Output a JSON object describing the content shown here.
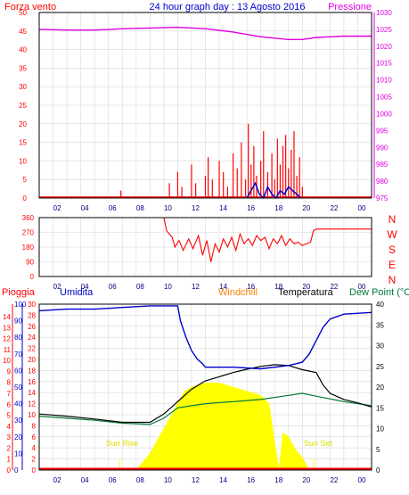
{
  "colors": {
    "red": "#ff0000",
    "magenta": "#e000e0",
    "blue": "#0000cc",
    "navy": "#000099",
    "orange": "#ff8000",
    "black": "#000000",
    "green": "#007a3a",
    "yellow": "#ffff00",
    "grid": "#d8d8d8",
    "panel_bg": "#ffffff",
    "frame": "#000000"
  },
  "chart_data": [
    {
      "type": "line",
      "title": "24 hour graph day : 13 Agosto 2016",
      "left_label": "Forza vento",
      "right_label": "Pressione",
      "x_ticks": [
        "02",
        "04",
        "06",
        "08",
        "10",
        "12",
        "14",
        "16",
        "18",
        "20",
        "22",
        "00"
      ],
      "y_left_ticks": [
        0,
        5,
        10,
        15,
        20,
        25,
        30,
        35,
        40,
        45,
        50
      ],
      "y_right_ticks": [
        975,
        980,
        985,
        990,
        995,
        1000,
        1005,
        1010,
        1015,
        1020,
        1025,
        1030
      ],
      "y_left_range": [
        0,
        50
      ],
      "y_right_range": [
        975,
        1030
      ],
      "series": [
        {
          "key": "pressure",
          "axis": "right",
          "x": [
            0,
            2,
            4,
            6,
            8,
            10,
            12,
            14,
            16,
            18,
            19,
            20,
            22,
            24
          ],
          "y": [
            1025.0,
            1024.8,
            1024.8,
            1025.2,
            1025.4,
            1025.6,
            1025.2,
            1024.2,
            1022.8,
            1022.0,
            1022.0,
            1022.6,
            1023.0,
            1023.0
          ]
        },
        {
          "key": "wind_gust",
          "axis": "left",
          "note": "",
          "x": [
            5.85,
            5.9,
            9.1,
            9.4,
            9.8,
            10.0,
            10.3,
            10.7,
            11.0,
            11.3,
            11.6,
            12.0,
            12.2,
            12.5,
            12.8,
            13.0,
            13.3,
            13.6,
            14.0,
            14.3,
            14.6,
            14.9,
            15.1,
            15.3,
            15.5,
            15.7,
            16.0,
            16.2,
            16.5,
            16.8,
            17.0,
            17.2,
            17.4,
            17.6,
            17.8,
            18.0,
            18.2,
            18.4,
            18.6,
            18.8,
            19.0,
            19.2
          ],
          "y": [
            0,
            2,
            0,
            4,
            0,
            7,
            3,
            0,
            9,
            4,
            0,
            6,
            11,
            5,
            0,
            10,
            7,
            3,
            12,
            8,
            15,
            5,
            20,
            9,
            14,
            6,
            10,
            18,
            7,
            12,
            5,
            16,
            9,
            14,
            17,
            8,
            13,
            18,
            6,
            11,
            3,
            0
          ]
        },
        {
          "key": "wind_avg",
          "axis": "left",
          "x": [
            15.0,
            15.3,
            15.6,
            15.9,
            16.2,
            16.5,
            16.8,
            17.1,
            17.4,
            17.7,
            18.0,
            18.3,
            18.6,
            18.9
          ],
          "y": [
            0,
            2,
            4,
            1,
            0,
            3,
            1,
            0,
            2,
            1,
            3,
            2,
            1,
            0
          ]
        }
      ]
    },
    {
      "type": "line",
      "title": "",
      "right_letters": [
        "N",
        "W",
        "S",
        "E",
        "N"
      ],
      "x_ticks": [
        "02",
        "04",
        "06",
        "08",
        "10",
        "12",
        "14",
        "16",
        "18",
        "20",
        "22",
        "00"
      ],
      "y_ticks": [
        0,
        90,
        180,
        270,
        360
      ],
      "y_range": [
        0,
        360
      ],
      "series": [
        {
          "key": "wind_dir",
          "x": [
            0,
            9.0,
            9.2,
            9.6,
            9.8,
            10.1,
            10.4,
            10.8,
            11.1,
            11.5,
            11.8,
            12.1,
            12.4,
            12.7,
            13.0,
            13.3,
            13.6,
            13.9,
            14.2,
            14.5,
            14.8,
            15.1,
            15.4,
            15.7,
            16.0,
            16.3,
            16.6,
            16.9,
            17.2,
            17.5,
            17.8,
            18.1,
            18.4,
            18.7,
            19.0,
            19.3,
            19.6,
            19.8,
            20.0,
            24
          ],
          "y": [
            360,
            360,
            280,
            240,
            180,
            220,
            160,
            230,
            170,
            250,
            130,
            220,
            90,
            200,
            150,
            230,
            180,
            240,
            160,
            260,
            200,
            230,
            190,
            250,
            220,
            240,
            170,
            230,
            200,
            250,
            190,
            230,
            200,
            210,
            190,
            200,
            210,
            280,
            290,
            290
          ]
        }
      ]
    },
    {
      "type": "line",
      "title": "",
      "labels": {
        "rain": "Pioggia",
        "humidity": "Umidita",
        "windchill": "Windchill",
        "temperature": "Temperatura",
        "dewpoint": "Dew Point (°C"
      },
      "sun_rise": "Sun Rise",
      "sun_set": "Sun Set",
      "x_ticks": [
        "02",
        "04",
        "06",
        "08",
        "10",
        "12",
        "14",
        "16",
        "18",
        "20",
        "22",
        "00"
      ],
      "y_rain_ticks": [
        0,
        1,
        2,
        3,
        4,
        5,
        6,
        7,
        8,
        9,
        10,
        11,
        12,
        13,
        14
      ],
      "y_hum_ticks": [
        0,
        10,
        20,
        30,
        40,
        50,
        60,
        70,
        80,
        90,
        100
      ],
      "y_t_left_ticks": [
        0,
        2,
        4,
        6,
        8,
        10,
        12,
        14,
        16,
        18,
        20,
        22,
        24,
        26,
        28,
        30
      ],
      "y_t_right_ticks": [
        0,
        5,
        10,
        15,
        20,
        25,
        30,
        35,
        40
      ],
      "y_t_range": [
        0,
        40
      ],
      "series": [
        {
          "key": "humidity",
          "axis": "hum",
          "x": [
            0,
            2,
            4,
            6,
            8,
            10,
            10.2,
            10.6,
            11.0,
            11.4,
            11.8,
            12,
            14,
            16,
            18,
            19,
            19.5,
            20,
            20.5,
            21,
            22,
            24
          ],
          "y": [
            96,
            97,
            97,
            98,
            99,
            99,
            90,
            80,
            72,
            67,
            64,
            62,
            62,
            61,
            63,
            65,
            70,
            78,
            86,
            91,
            94,
            95
          ]
        },
        {
          "key": "temperature",
          "axis": "temp",
          "x": [
            0,
            2,
            4,
            6,
            8,
            9,
            10,
            11,
            12,
            13,
            14,
            15,
            16,
            17,
            18,
            19,
            20,
            20.5,
            21,
            22,
            23,
            24
          ],
          "y": [
            13.5,
            13.0,
            12.3,
            11.5,
            11.5,
            13.5,
            16.5,
            19.5,
            21.5,
            22.5,
            23.5,
            24.3,
            25.0,
            25.4,
            25.2,
            24.2,
            23.5,
            20.5,
            18.5,
            17.0,
            16.2,
            15.2
          ]
        },
        {
          "key": "dewpoint",
          "axis": "temp",
          "x": [
            0,
            2,
            4,
            6,
            8,
            9,
            10,
            11,
            12,
            14,
            16,
            18,
            19,
            20,
            22,
            24
          ],
          "y": [
            13.0,
            12.5,
            12.0,
            11.3,
            11.0,
            12.5,
            15.0,
            15.5,
            16.0,
            16.5,
            17.0,
            18.0,
            18.5,
            17.8,
            16.5,
            15.5
          ]
        },
        {
          "key": "solar",
          "axis": "temp",
          "x": [
            6.0,
            7.0,
            8.0,
            9.0,
            10.0,
            10.5,
            11.0,
            12.0,
            13.0,
            14.0,
            15.0,
            16.0,
            16.6,
            17.3,
            17.6,
            18.0,
            18.5,
            19.0,
            19.5,
            20.0
          ],
          "y": [
            0,
            0,
            4,
            10,
            16,
            19,
            20,
            21,
            21,
            20,
            19,
            18,
            16,
            0,
            9,
            8,
            5,
            3,
            0,
            0
          ]
        },
        {
          "key": "rain",
          "axis": "rain",
          "x": [
            0,
            24
          ],
          "y": [
            0,
            0
          ]
        }
      ]
    }
  ]
}
